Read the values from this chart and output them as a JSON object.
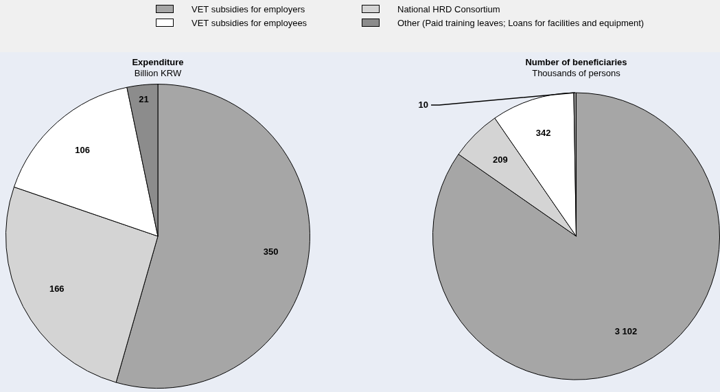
{
  "chart_data": [
    {
      "type": "pie",
      "title": "Expenditure",
      "subtitle": "Billion KRW",
      "categories": [
        "VET subsidies for employers",
        "National HRD Consortium",
        "VET subsidies for employees",
        "Other (Paid training leaves; Loans for facilities and equipment)"
      ],
      "values": [
        350,
        166,
        106,
        21
      ],
      "colors": [
        "#a6a6a6",
        "#d4d4d4",
        "#ffffff",
        "#8c8c8c"
      ],
      "data_labels": true,
      "legend": "top"
    },
    {
      "type": "pie",
      "title": "Number of beneficiaries",
      "subtitle": "Thousands of persons",
      "categories": [
        null,
        null,
        null,
        null
      ],
      "values": [
        3102,
        209,
        342,
        10
      ],
      "colors": [
        "#a6a6a6",
        "#d4d4d4",
        "#ffffff",
        "#8c8c8c"
      ],
      "value_labels": [
        "3 102",
        "209",
        "342",
        "10"
      ]
    }
  ]
}
